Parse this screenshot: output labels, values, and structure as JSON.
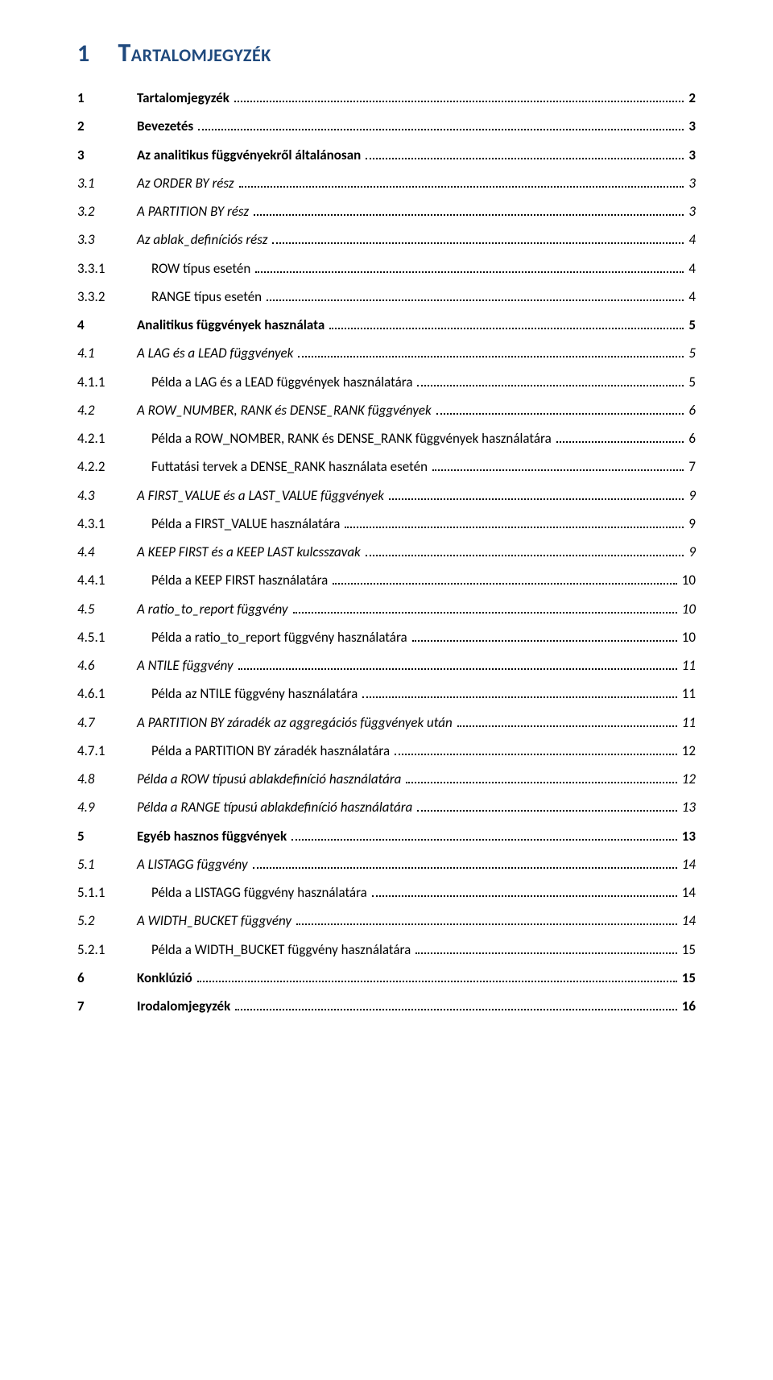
{
  "colors": {
    "heading": "#1f497d",
    "text": "#000000",
    "background": "#ffffff",
    "leader": "#000000"
  },
  "typography": {
    "base_family": "Calibri",
    "h1_size_pt": 24,
    "body_size_pt": 13
  },
  "heading": {
    "number": "1",
    "text": "Tartalomjegyzék"
  },
  "toc_entries": [
    {
      "level": 1,
      "num": "1",
      "title": "Tartalomjegyzék",
      "page": "2"
    },
    {
      "level": 1,
      "num": "2",
      "title": "Bevezetés",
      "page": "3"
    },
    {
      "level": 1,
      "num": "3",
      "title": "Az analitikus függvényekről általánosan",
      "page": "3"
    },
    {
      "level": 2,
      "num": "3.1",
      "title": "Az ORDER BY rész",
      "page": "3"
    },
    {
      "level": 2,
      "num": "3.2",
      "title": "A PARTITION BY rész",
      "page": "3"
    },
    {
      "level": 2,
      "num": "3.3",
      "title": "Az ablak_definíciós rész",
      "page": "4"
    },
    {
      "level": 3,
      "num": "3.3.1",
      "title": "ROW típus esetén",
      "page": "4"
    },
    {
      "level": 3,
      "num": "3.3.2",
      "title": "RANGE típus esetén",
      "page": "4"
    },
    {
      "level": 1,
      "num": "4",
      "title": "Analitikus függvények használata",
      "page": "5"
    },
    {
      "level": 2,
      "num": "4.1",
      "title": "A LAG és a LEAD függvények",
      "page": "5"
    },
    {
      "level": 3,
      "num": "4.1.1",
      "title": "Példa a LAG és a LEAD függvények használatára",
      "page": "5"
    },
    {
      "level": 2,
      "num": "4.2",
      "title": "A ROW_NUMBER, RANK és DENSE_RANK függvények",
      "page": "6"
    },
    {
      "level": 3,
      "num": "4.2.1",
      "title": "Példa a ROW_NOMBER, RANK és DENSE_RANK függvények használatára",
      "page": "6"
    },
    {
      "level": 3,
      "num": "4.2.2",
      "title": "Futtatási tervek a DENSE_RANK használata esetén",
      "page": "7"
    },
    {
      "level": 2,
      "num": "4.3",
      "title": "A FIRST_VALUE és a LAST_VALUE függvények",
      "page": "9"
    },
    {
      "level": 3,
      "num": "4.3.1",
      "title": "Példa a FIRST_VALUE használatára",
      "page": "9"
    },
    {
      "level": 2,
      "num": "4.4",
      "title": "A KEEP FIRST és a KEEP LAST kulcsszavak",
      "page": "9"
    },
    {
      "level": 3,
      "num": "4.4.1",
      "title": "Példa a KEEP FIRST használatára",
      "page": "10"
    },
    {
      "level": 2,
      "num": "4.5",
      "title": "A ratio_to_report függvény",
      "page": "10"
    },
    {
      "level": 3,
      "num": "4.5.1",
      "title": "Példa a ratio_to_report függvény használatára",
      "page": "10"
    },
    {
      "level": 2,
      "num": "4.6",
      "title": "A NTILE függvény",
      "page": "11"
    },
    {
      "level": 3,
      "num": "4.6.1",
      "title": "Példa az NTILE függvény használatára",
      "page": "11"
    },
    {
      "level": 2,
      "num": "4.7",
      "title": "A PARTITION BY záradék az aggregációs függvények után",
      "page": "11"
    },
    {
      "level": 3,
      "num": "4.7.1",
      "title": "Példa a PARTITION BY záradék használatára",
      "page": "12"
    },
    {
      "level": 2,
      "num": "4.8",
      "title": "Példa a ROW típusú ablakdefiníció használatára",
      "page": "12"
    },
    {
      "level": 2,
      "num": "4.9",
      "title": "Példa a RANGE típusú ablakdefiníció használatára",
      "page": "13"
    },
    {
      "level": 1,
      "num": "5",
      "title": "Egyéb hasznos függvények",
      "page": "13"
    },
    {
      "level": 2,
      "num": "5.1",
      "title": "A LISTAGG függvény",
      "page": "14"
    },
    {
      "level": 3,
      "num": "5.1.1",
      "title": "Példa a LISTAGG függvény használatára",
      "page": "14"
    },
    {
      "level": 2,
      "num": "5.2",
      "title": "A WIDTH_BUCKET függvény",
      "page": "14"
    },
    {
      "level": 3,
      "num": "5.2.1",
      "title": "Példa a WIDTH_BUCKET függvény használatára",
      "page": "15"
    },
    {
      "level": 1,
      "num": "6",
      "title": "Konklúzió",
      "page": "15"
    },
    {
      "level": 1,
      "num": "7",
      "title": "Irodalomjegyzék",
      "page": "16"
    }
  ]
}
